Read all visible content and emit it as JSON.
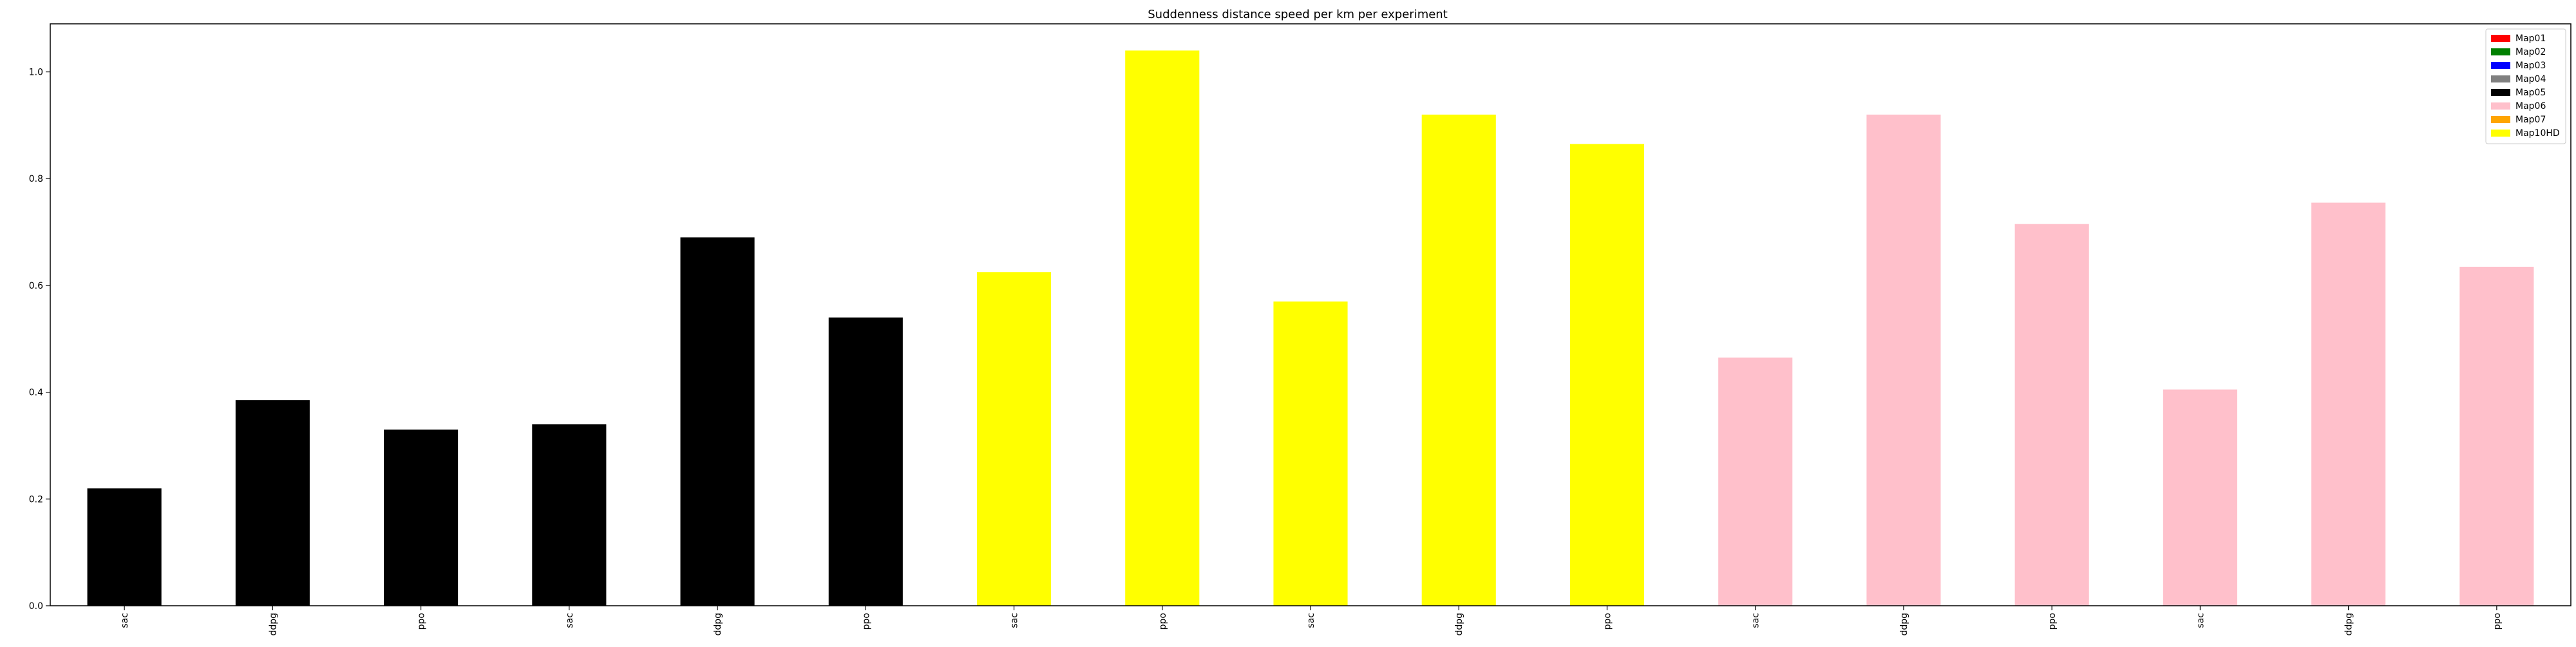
{
  "chart_data": {
    "type": "bar",
    "title": "Suddenness distance speed per km per experiment",
    "xlabel": "",
    "ylabel": "",
    "ylim": [
      0,
      1.09
    ],
    "yticks": [
      0.0,
      0.2,
      0.4,
      0.6,
      0.8,
      1.0
    ],
    "ytick_labels": [
      "0.0",
      "0.2",
      "0.4",
      "0.6",
      "0.8",
      "1.0"
    ],
    "grid": false,
    "legend_placement": "top-right",
    "categories": [
      "sac",
      "ddpg",
      "ppo",
      "sac",
      "ddpg",
      "ppo",
      "sac",
      "ppo",
      "sac",
      "ddpg",
      "ppo",
      "sac",
      "ddpg",
      "ppo",
      "sac",
      "ddpg",
      "ppo"
    ],
    "values": [
      0.22,
      0.385,
      0.33,
      0.34,
      0.69,
      0.54,
      0.625,
      1.04,
      0.57,
      0.92,
      0.865,
      0.465,
      0.92,
      0.715,
      0.405,
      0.755,
      0.635
    ],
    "bar_groups": [
      "Map05",
      "Map05",
      "Map05",
      "Map05",
      "Map05",
      "Map05",
      "Map10HD",
      "Map10HD",
      "Map10HD",
      "Map10HD",
      "Map10HD",
      "Map06",
      "Map06",
      "Map06",
      "Map06",
      "Map06",
      "Map06"
    ],
    "legend": [
      {
        "name": "Map01",
        "color": "#ff0000"
      },
      {
        "name": "Map02",
        "color": "#008000"
      },
      {
        "name": "Map03",
        "color": "#0000ff"
      },
      {
        "name": "Map04",
        "color": "#808080"
      },
      {
        "name": "Map05",
        "color": "#000000"
      },
      {
        "name": "Map06",
        "color": "#ffc0cb"
      },
      {
        "name": "Map07",
        "color": "#ffa500"
      },
      {
        "name": "Map10HD",
        "color": "#ffff00"
      }
    ]
  }
}
